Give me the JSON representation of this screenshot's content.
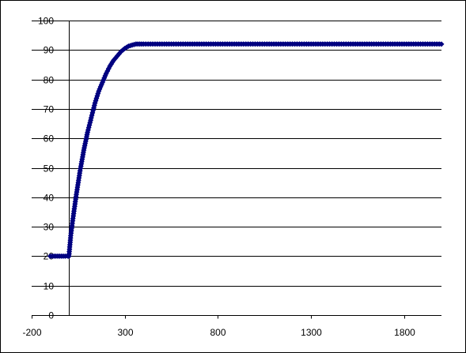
{
  "chart_data": {
    "type": "line",
    "title": "",
    "xlabel": "",
    "ylabel": "",
    "xlim": [
      -200,
      2000
    ],
    "ylim": [
      0,
      100
    ],
    "x_ticks": [
      -200,
      300,
      800,
      1300,
      1800
    ],
    "x_tick_labels": [
      "-200",
      "300",
      "800",
      "1300",
      "1800"
    ],
    "y_ticks": [
      0,
      10,
      20,
      30,
      40,
      50,
      60,
      70,
      80,
      90,
      100
    ],
    "y_tick_labels": [
      "0",
      "10",
      "20",
      "30",
      "40",
      "50",
      "60",
      "70",
      "80",
      "90",
      "100"
    ],
    "grid": {
      "horizontal": true,
      "vertical": false
    },
    "legend": "none",
    "series": [
      {
        "color": "#000080",
        "marker": "diamond",
        "x": [
          -100,
          -80,
          -60,
          -40,
          -20,
          -5,
          0,
          10,
          20,
          40,
          60,
          80,
          100,
          120,
          140,
          160,
          180,
          200,
          220,
          240,
          260,
          280,
          300,
          320,
          340,
          360,
          380,
          400,
          450,
          500,
          600,
          700,
          800,
          900,
          1000,
          1100,
          1200,
          1300,
          1400,
          1500,
          1600,
          1700,
          1800,
          1900,
          2000
        ],
        "y": [
          20,
          20,
          20,
          20,
          20,
          20,
          20,
          27,
          32,
          41,
          49,
          56,
          62,
          67,
          72,
          76,
          79,
          82,
          84.5,
          86.5,
          88,
          89.5,
          90.5,
          91.3,
          91.7,
          92,
          92,
          92,
          92,
          92,
          92,
          92,
          92,
          92,
          92,
          92,
          92,
          92,
          92,
          92,
          92,
          92,
          92,
          92,
          92
        ]
      }
    ]
  }
}
